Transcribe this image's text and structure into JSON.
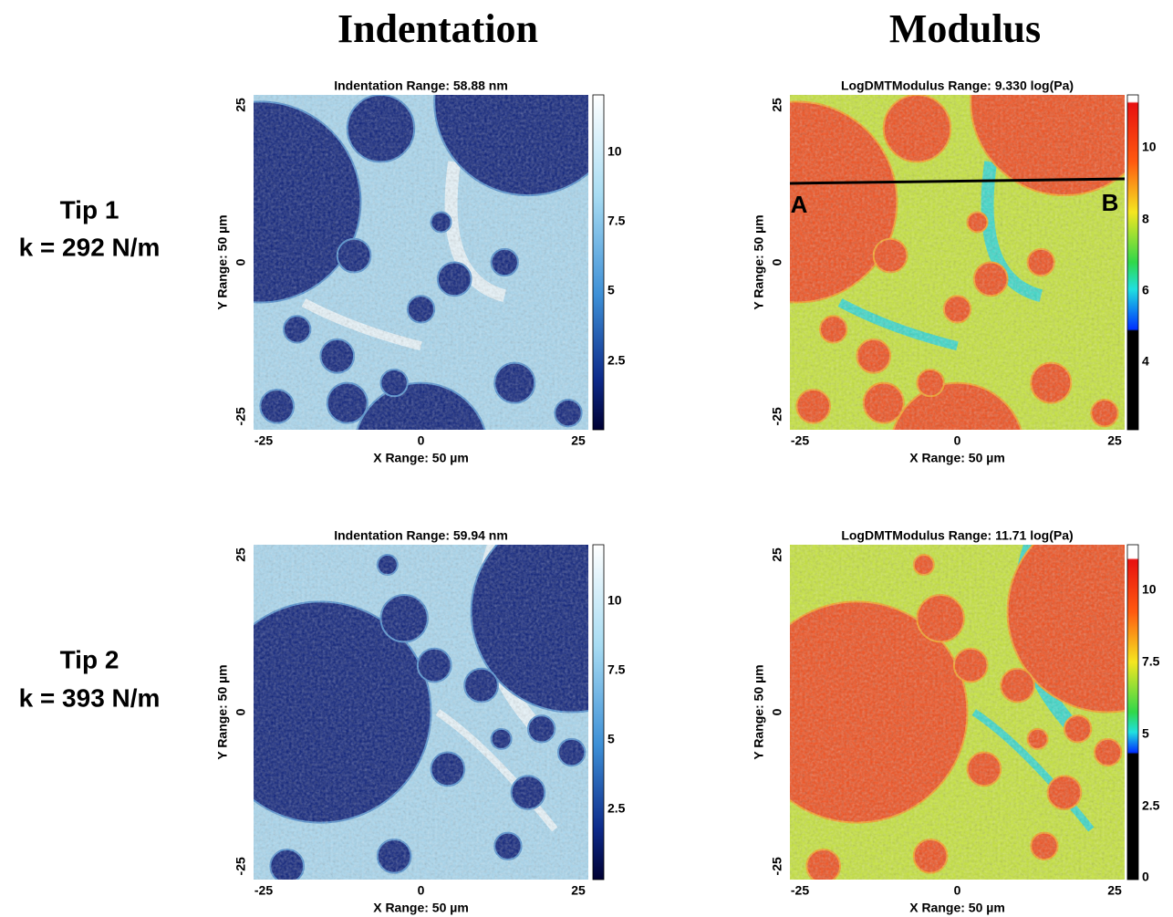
{
  "column_headers": [
    "Indentation",
    "Modulus"
  ],
  "row_labels": [
    {
      "tip": "Tip 1",
      "stiffness": "k = 292 N/m"
    },
    {
      "tip": "Tip 2",
      "stiffness": "k = 393 N/m"
    }
  ],
  "panels": [
    {
      "title": "Indentation Range:  58.88 nm",
      "x_label": "X Range: 50 µm",
      "y_label": "Y Range: 50 µm",
      "x_ticks": [
        -25,
        0,
        25
      ],
      "y_ticks": [
        25,
        0,
        -25
      ],
      "colorbar_ticks": [
        10,
        7.5,
        5,
        2.5
      ]
    },
    {
      "title": "LogDMTModulus Range:  9.330 log(Pa)",
      "x_label": "X Range: 50 µm",
      "y_label": "Y Range: 50 µm",
      "x_ticks": [
        -25,
        0,
        25
      ],
      "y_ticks": [
        25,
        0,
        -25
      ],
      "colorbar_ticks": [
        10,
        8,
        6,
        4
      ],
      "line_labels": [
        "A",
        "B"
      ]
    },
    {
      "title": "Indentation Range:  59.94 nm",
      "x_label": "X Range: 50 µm",
      "y_label": "Y Range: 50 µm",
      "x_ticks": [
        -25,
        0,
        25
      ],
      "y_ticks": [
        25,
        0,
        -25
      ],
      "colorbar_ticks": [
        10,
        7.5,
        5,
        2.5
      ]
    },
    {
      "title": "LogDMTModulus Range:  11.71 log(Pa)",
      "x_label": "X Range: 50 µm",
      "y_label": "Y Range: 50 µm",
      "x_ticks": [
        -25,
        0,
        25
      ],
      "y_ticks": [
        25,
        0,
        -25
      ],
      "colorbar_ticks": [
        10,
        7.5,
        5,
        2.5,
        0
      ]
    }
  ]
}
